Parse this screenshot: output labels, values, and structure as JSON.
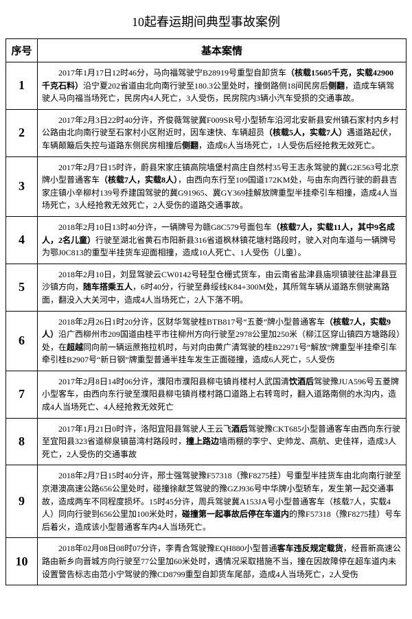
{
  "title": "10起春运期间典型事故案例",
  "headers": {
    "num": "序号",
    "case": "基本案情"
  },
  "rows": [
    {
      "num": "1",
      "case_html": "2017年1月17日12时46分，马向福驾驶宁B28919号重型自卸货车<b>（核载15605千克，实载42900千克石料）</b>沿宁夏202省道由北向南行驶至180.3公里处时，撞倒路侧18间民房后<b>侧翻</b>，造成车辆驾驶人马向福当场死亡，民房内4人死亡，3人受伤，民房院内3辆小汽车受损的交通事故。"
    },
    {
      "num": "2",
      "case_html": "2017年2月3日22时40分许，齐俊薇驾驶冀F009SR号小型轿车沿河北安新县安州镇石家村内乡村公路由北向南行驶至石家村小区附近时，因车速快、车辆超员<b>（核载5人，实载7人）</b>遇道路起伏，车辆颠簸后失控与道路东侧民房相撞后<b>侧翻</b>，造成6人当场死亡，1人受伤后经抢救无效死亡。"
    },
    {
      "num": "3",
      "case_html": "2017年2月7日15时许，蔚县宋家庄镇高院墙堡村高庄自然村35号王志永驾驶的冀G2E563号北京牌小型普通客车<b>（核载7人，实载8人）</b>，由西向东行至109国道172KM处，与由东向西行驶的蔚县吉家庄镇小辛柳村139号乔建国驾驶的冀G91965、冀GY369挂解放牌重型半挂牵引车相撞，造成4人当场死亡，3人经抢救无效死亡，2人受伤的道路交通事故。"
    },
    {
      "num": "4",
      "case_html": "2018年2月10日13时40分许，一辆牌号为赣G8C579号面包车<b>（核载7人，实载11人，其中9名成人，2名儿童）</b>行驶至湖北省黄石市阳新县316省道枫林镇花塘村路段时，驶入对向车道与一辆牌号为鄂J0C813的重型半挂货车迎面相撞，造成10人死亡、1人受伤（儿童）。"
    },
    {
      "num": "5",
      "case_html": "2018年2月10日，刘显驾驶云CW0142号轻型仓栅式货车，由云南省盐津县庙坝镇驶往盐津县豆沙镇方向，<b>随车搭乘五人</b>，6时40分，行驶至彝绥线K84+300M处，其所驾车辆从道路东侧驶离路面，翻没入大关河中，造成4人当场死亡，2人下落不明。"
    },
    {
      "num": "6",
      "case_html": "2018年2月26日1时20分许，区财华驾驶桂BTB817号“五菱”牌小型普通客车<b>（核载7人，实载9人）</b>沿广西柳州市209国道由桂平市往柳州方向行驶至2978公里加250米（柳江区穿山镇四方塘路段）处，在<b>超越</b>同向前一辆运蔗拖拉机时，与对向由黄广清驾驶的桂B22971号“解放”牌重型半挂牵引车牵引桂B2907号“新日钢”牌重型普通半挂车发生正面碰撞，造成6人死亡，5人受伤"
    },
    {
      "num": "7",
      "case_html": "2017年2月8日14时06分许，濮阳市濮阳县柳屯镇肖楼村人武国清<b>饮酒后</b>驾驶豫JUA596号五菱牌小型客车，由西向东行驶至濮阳县柳屯镇肖楼村路口道路上右转弯时，翻入道路南侧的水沟内，造成4人当场死亡、4人经抢救无效死亡"
    },
    {
      "num": "8",
      "case_html": "2017年1月21日0时许，洛阳宜阳县驾驶人王云飞<b>酒后</b>驾驶豫CKT685小型普通客车由西向东行驶至宜阳县323省道柳泉镇苗湾村路段时，<b>撞上路边</b>墙雨棚的李宁、史帅龙、高航、史佳祥，造成3人死亡，2人受伤的交通事故"
    },
    {
      "num": "9",
      "case_html": "2018年2月7日15时40分许，邢士强驾驶豫F57318（豫F8275挂）号重型半挂货车由北向南行驶至京港澳高速公路656公里处时，碰撞徐献芝驾驶的豫GZJ936号中华牌小型轿车，发生第一起交通事故，造成两车不同程度损坏。15时45分许，周兵驾驶冀A153JA号小型普通客车（核载7人，实载4人）同向行驶到656公里加100米处时，<b>碰撞第一起事故后停在车道内</b>的豫F57318（豫F8275挂）号车后着火，造成该小型普通客车内4人当场死亡。"
    },
    {
      "num": "10",
      "case_html": "2018年02月08日08时07分许，李青合驾驶豫EQH880小型普通<b>客车违反规定载货</b>，经晋新高速公路由新乡向晋城方向行驶至77公里加60米处时，遇情况采取措施不当，撞在因故障停在超车道内未设置警告标志由范小宁驾驶的豫CD8799重型自卸货车尾部，造成4人当场死亡，2人受伤"
    }
  ]
}
